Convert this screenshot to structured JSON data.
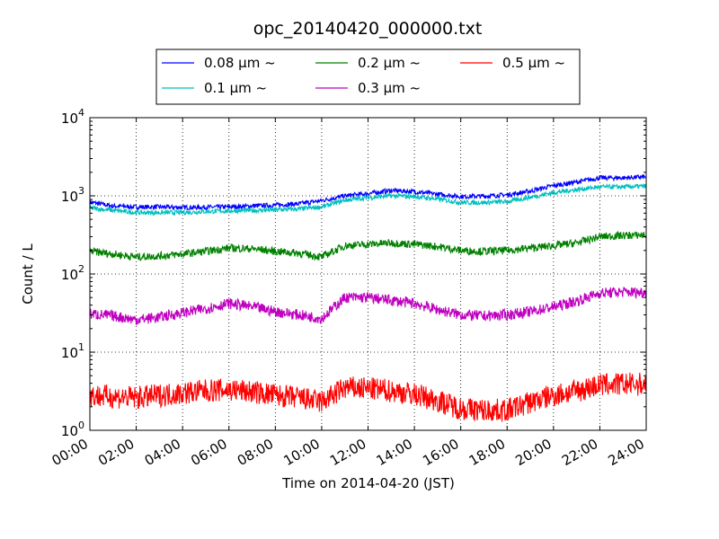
{
  "chart_data": {
    "type": "line",
    "title": "opc_20140420_000000.txt",
    "xlabel": "Time on 2014-04-20 (JST)",
    "ylabel": "Count / L",
    "yscale": "log",
    "ylim": [
      1,
      10000
    ],
    "xlim": [
      "00:00",
      "24:00"
    ],
    "x_ticks": [
      "00:00",
      "02:00",
      "04:00",
      "06:00",
      "08:00",
      "10:00",
      "12:00",
      "14:00",
      "16:00",
      "18:00",
      "20:00",
      "22:00",
      "24:00"
    ],
    "y_ticks": [
      {
        "base": "10",
        "exp": "0",
        "value": 1
      },
      {
        "base": "10",
        "exp": "1",
        "value": 10
      },
      {
        "base": "10",
        "exp": "2",
        "value": 100
      },
      {
        "base": "10",
        "exp": "3",
        "value": 1000
      },
      {
        "base": "10",
        "exp": "4",
        "value": 10000
      }
    ],
    "grid": true,
    "legend_position": "top-center",
    "x": [
      "00:00",
      "01:00",
      "02:00",
      "03:00",
      "04:00",
      "05:00",
      "06:00",
      "07:00",
      "08:00",
      "09:00",
      "10:00",
      "11:00",
      "12:00",
      "13:00",
      "14:00",
      "15:00",
      "16:00",
      "17:00",
      "18:00",
      "19:00",
      "20:00",
      "21:00",
      "22:00",
      "23:00",
      "24:00"
    ],
    "series": [
      {
        "name": "0.08 µm ~",
        "color": "#0000ff",
        "noise": 0.03,
        "values": [
          830,
          740,
          720,
          720,
          710,
          715,
          720,
          740,
          760,
          790,
          870,
          1000,
          1070,
          1170,
          1130,
          1050,
          980,
          990,
          1030,
          1150,
          1350,
          1500,
          1700,
          1700,
          1750
        ]
      },
      {
        "name": "0.1 µm ~",
        "color": "#00bfbf",
        "noise": 0.03,
        "values": [
          700,
          650,
          610,
          610,
          610,
          630,
          640,
          650,
          660,
          680,
          720,
          880,
          950,
          1000,
          980,
          910,
          820,
          820,
          840,
          960,
          1100,
          1200,
          1300,
          1300,
          1330
        ]
      },
      {
        "name": "0.2 µm ~",
        "color": "#008000",
        "noise": 0.05,
        "values": [
          195,
          180,
          165,
          170,
          180,
          195,
          215,
          210,
          195,
          185,
          165,
          230,
          240,
          250,
          240,
          225,
          200,
          195,
          200,
          215,
          230,
          250,
          300,
          310,
          315
        ]
      },
      {
        "name": "0.3 µm ~",
        "color": "#bf00bf",
        "noise": 0.07,
        "values": [
          31,
          29,
          26,
          28,
          32,
          36,
          42,
          38,
          33,
          30,
          27,
          50,
          50,
          46,
          42,
          35,
          30,
          29,
          30,
          33,
          38,
          45,
          57,
          59,
          58
        ]
      },
      {
        "name": "0.5 µm ~",
        "color": "#ff0000",
        "noise": 0.15,
        "values": [
          2.8,
          2.7,
          2.6,
          2.8,
          3.0,
          3.2,
          3.3,
          3.1,
          2.8,
          2.6,
          2.3,
          3.5,
          3.4,
          3.2,
          2.9,
          2.4,
          1.9,
          1.8,
          1.8,
          2.3,
          2.8,
          3.2,
          3.8,
          3.9,
          3.9
        ]
      }
    ]
  }
}
